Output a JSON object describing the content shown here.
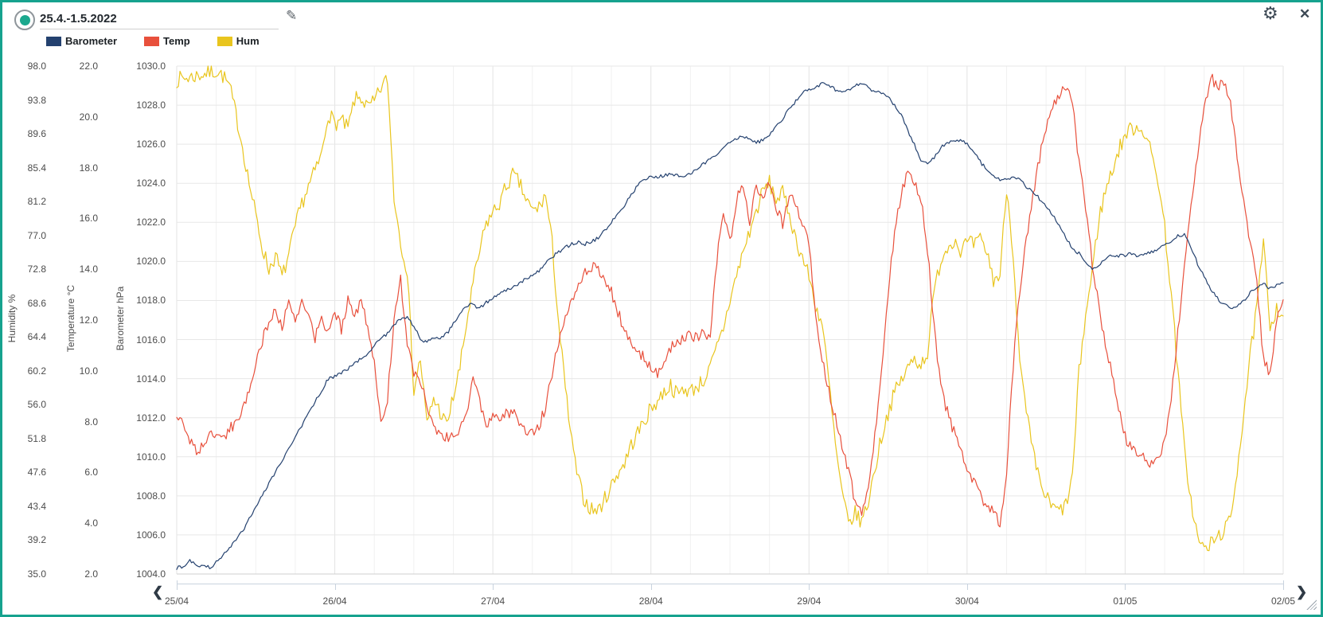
{
  "frame": {
    "border_color": "#16a28e"
  },
  "header": {
    "title": "25.4.-1.5.2022",
    "record_icon": {
      "ring_color": "#8f969b",
      "dot_color": "#1ba88e"
    },
    "edit_icon": "✎",
    "settings_icon": "⚙",
    "close_icon": "✕"
  },
  "legend": [
    {
      "label": "Barometer",
      "color": "#24416f"
    },
    {
      "label": "Temp",
      "color": "#e8503c"
    },
    {
      "label": "Hum",
      "color": "#e9c51e"
    }
  ],
  "axes": {
    "y": [
      {
        "name": "humidity",
        "title": "Humidity %",
        "range": [
          35.0,
          98.0
        ],
        "ticks": [
          "98.0",
          "93.8",
          "89.6",
          "85.4",
          "81.2",
          "77.0",
          "72.8",
          "68.6",
          "64.4",
          "60.2",
          "56.0",
          "51.8",
          "47.6",
          "43.4",
          "39.2",
          "35.0"
        ]
      },
      {
        "name": "temperature",
        "title": "Temperature °C",
        "range": [
          2.0,
          22.0
        ],
        "ticks": [
          "22.0",
          "20.0",
          "18.0",
          "16.0",
          "14.0",
          "12.0",
          "10.0",
          "8.0",
          "6.0",
          "4.0",
          "2.0"
        ]
      },
      {
        "name": "barometer",
        "title": "Barometer hPa",
        "range": [
          1004.0,
          1030.0
        ],
        "ticks": [
          "1030.0",
          "1028.0",
          "1026.0",
          "1024.0",
          "1022.0",
          "1020.0",
          "1018.0",
          "1016.0",
          "1014.0",
          "1012.0",
          "1010.0",
          "1008.0",
          "1006.0",
          "1004.0"
        ]
      }
    ],
    "x": {
      "labels": [
        "25/04",
        "26/04",
        "27/04",
        "28/04",
        "29/04",
        "30/04",
        "01/05",
        "02/05"
      ]
    }
  },
  "chart_data": {
    "type": "line",
    "title": "25.4.-1.5.2022",
    "x_start": "25/04 00:00",
    "x_end": "02/05 00:00",
    "x_step_hours": 1,
    "grid": true,
    "legend_position": "top-left",
    "series": [
      {
        "name": "Barometer",
        "unit": "hPa",
        "color": "#24416f",
        "ylim": [
          1004,
          1030
        ],
        "values": [
          1004.3,
          1004.4,
          1004.7,
          1004.4,
          1004.5,
          1004.3,
          1004.6,
          1004.9,
          1005.4,
          1005.7,
          1006.2,
          1006.8,
          1007.4,
          1008.0,
          1008.6,
          1009.2,
          1009.8,
          1010.4,
          1011.0,
          1011.6,
          1012.2,
          1012.8,
          1013.4,
          1014.0,
          1014.1,
          1014.3,
          1014.5,
          1014.8,
          1015.0,
          1015.3,
          1015.7,
          1016.1,
          1016.3,
          1016.8,
          1017.0,
          1017.1,
          1016.7,
          1016.0,
          1015.9,
          1016.1,
          1016.1,
          1016.3,
          1016.8,
          1017.3,
          1017.7,
          1017.8,
          1017.6,
          1017.9,
          1018.1,
          1018.3,
          1018.5,
          1018.7,
          1018.9,
          1019.1,
          1019.3,
          1019.5,
          1019.9,
          1020.2,
          1020.5,
          1020.7,
          1020.9,
          1021.0,
          1020.9,
          1021.0,
          1021.2,
          1021.6,
          1022.0,
          1022.4,
          1022.9,
          1023.4,
          1023.9,
          1024.2,
          1024.3,
          1024.3,
          1024.4,
          1024.5,
          1024.4,
          1024.3,
          1024.5,
          1024.7,
          1025.0,
          1025.2,
          1025.5,
          1025.8,
          1026.1,
          1026.3,
          1026.4,
          1026.3,
          1026.1,
          1026.2,
          1026.5,
          1026.9,
          1027.3,
          1027.8,
          1028.2,
          1028.6,
          1028.8,
          1028.9,
          1029.1,
          1029.0,
          1028.8,
          1028.6,
          1028.8,
          1029.0,
          1029.1,
          1028.9,
          1028.7,
          1028.6,
          1028.4,
          1028.0,
          1027.5,
          1026.7,
          1026.0,
          1025.2,
          1025.0,
          1025.3,
          1025.8,
          1026.1,
          1026.2,
          1026.2,
          1026.0,
          1025.6,
          1025.1,
          1024.7,
          1024.4,
          1024.2,
          1024.2,
          1024.3,
          1024.2,
          1023.8,
          1023.6,
          1023.2,
          1022.8,
          1022.4,
          1021.8,
          1021.2,
          1020.7,
          1020.4,
          1020.0,
          1019.6,
          1019.8,
          1020.1,
          1020.3,
          1020.3,
          1020.3,
          1020.4,
          1020.3,
          1020.4,
          1020.5,
          1020.6,
          1020.8,
          1021.0,
          1021.3,
          1021.4,
          1020.7,
          1019.9,
          1019.2,
          1018.6,
          1018.1,
          1017.8,
          1017.6,
          1017.7,
          1018.0,
          1018.4,
          1018.7,
          1018.9,
          1018.6,
          1018.8,
          1018.9
        ]
      },
      {
        "name": "Temp",
        "unit": "°C",
        "color": "#e8503c",
        "ylim": [
          2,
          22
        ],
        "values": [
          8.2,
          7.9,
          7.3,
          6.8,
          7.1,
          7.4,
          7.6,
          7.3,
          7.7,
          8.0,
          8.4,
          9.3,
          10.3,
          11.2,
          11.9,
          12.4,
          11.8,
          12.6,
          11.9,
          12.8,
          12.1,
          11.3,
          12.0,
          11.6,
          12.4,
          11.6,
          12.9,
          12.2,
          12.8,
          11.6,
          10.4,
          7.8,
          8.9,
          12.1,
          13.6,
          11.0,
          9.9,
          9.6,
          8.7,
          7.7,
          7.4,
          7.4,
          7.5,
          7.6,
          8.3,
          9.9,
          8.8,
          7.7,
          8.3,
          8.2,
          8.3,
          8.4,
          8.0,
          7.7,
          7.6,
          7.8,
          8.6,
          9.9,
          11.2,
          12.2,
          12.9,
          13.3,
          13.9,
          14.1,
          14.0,
          13.5,
          13.1,
          12.3,
          11.6,
          11.0,
          10.8,
          10.5,
          10.2,
          9.8,
          10.3,
          10.9,
          11.2,
          11.3,
          11.4,
          11.3,
          11.5,
          11.4,
          14.3,
          16.4,
          15.0,
          16.8,
          17.4,
          15.8,
          17.3,
          16.6,
          17.4,
          16.5,
          15.8,
          16.8,
          16.6,
          15.8,
          15.0,
          12.4,
          10.4,
          9.2,
          8.2,
          7.0,
          6.0,
          4.9,
          4.4,
          5.5,
          7.5,
          10.0,
          13.0,
          15.5,
          17.0,
          17.9,
          17.5,
          16.8,
          14.8,
          11.7,
          9.3,
          8.4,
          7.6,
          6.8,
          6.2,
          5.6,
          5.1,
          4.7,
          4.4,
          4.0,
          6.0,
          10.2,
          13.2,
          15.1,
          16.8,
          18.4,
          19.6,
          20.4,
          20.9,
          21.1,
          20.6,
          18.2,
          16.5,
          14.2,
          12.5,
          11.0,
          10.0,
          8.6,
          7.4,
          6.9,
          6.7,
          6.5,
          6.3,
          6.6,
          7.2,
          9.0,
          11.5,
          14.0,
          16.5,
          18.5,
          20.3,
          21.6,
          21.2,
          21.4,
          20.6,
          18.4,
          16.8,
          15.0,
          13.5,
          10.5,
          9.8,
          12.0,
          12.8
        ]
      },
      {
        "name": "Hum",
        "unit": "%",
        "color": "#e9c51e",
        "ylim": [
          35,
          98
        ],
        "values": [
          96.3,
          96.5,
          96.6,
          96.8,
          97.0,
          97.2,
          97.4,
          96.8,
          95.5,
          92.0,
          88.0,
          83.5,
          79.5,
          75.5,
          72.8,
          74.5,
          71.8,
          74.5,
          78.0,
          81.0,
          83.0,
          85.0,
          87.0,
          92.2,
          90.9,
          91.2,
          90.2,
          93.8,
          94.1,
          92.8,
          93.5,
          95.3,
          96.4,
          81.8,
          76.2,
          72.7,
          57.8,
          61.7,
          53.5,
          56.8,
          55.1,
          53.4,
          57.0,
          60.5,
          66.0,
          71.0,
          75.0,
          78.5,
          79.8,
          81.0,
          83.0,
          84.5,
          83.5,
          81.5,
          80.0,
          80.5,
          82.0,
          76.0,
          66.0,
          58.0,
          51.2,
          46.5,
          44.0,
          43.0,
          42.9,
          44.3,
          46.0,
          47.6,
          48.8,
          51.0,
          52.5,
          54.0,
          55.5,
          56.5,
          57.6,
          58.4,
          57.2,
          58.0,
          57.7,
          58.3,
          59.0,
          60.5,
          63.0,
          65.5,
          69.0,
          72.0,
          75.0,
          77.5,
          80.0,
          82.5,
          83.5,
          81.5,
          82.2,
          79.8,
          76.5,
          74.3,
          71.9,
          68.3,
          66.0,
          59.0,
          51.0,
          45.0,
          41.2,
          42.5,
          41.5,
          44.0,
          48.0,
          52.0,
          55.0,
          57.5,
          59.0,
          60.5,
          61.8,
          61.0,
          62.5,
          70.0,
          74.0,
          75.5,
          76.6,
          75.2,
          76.1,
          75.8,
          76.4,
          75.0,
          71.5,
          72.0,
          83.0,
          75.0,
          61.0,
          55.0,
          50.0,
          46.5,
          44.5,
          43.2,
          42.8,
          43.5,
          47.0,
          60.0,
          67.0,
          72.5,
          79.0,
          82.5,
          85.0,
          87.5,
          89.5,
          90.3,
          90.5,
          89.8,
          87.0,
          84.0,
          78.0,
          70.0,
          60.0,
          50.5,
          44.0,
          39.5,
          38.0,
          38.7,
          39.5,
          40.5,
          41.5,
          48.0,
          55.0,
          62.0,
          68.0,
          76.0,
          65.9,
          68.0,
          67.0
        ]
      }
    ],
    "render_hints": {
      "noise_amp": {
        "Barometer": 0.09,
        "Temp": 0.22,
        "Hum": 1.0
      },
      "substeps": 4,
      "seed": 7
    }
  },
  "scrollbar": {
    "left_chevron": "❮",
    "right_chevron": "❯"
  }
}
